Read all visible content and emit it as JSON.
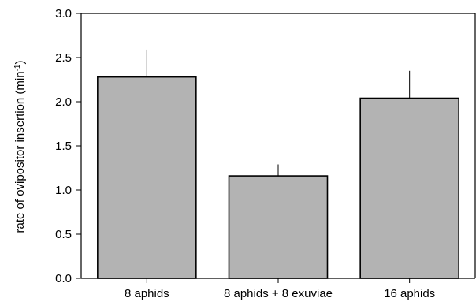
{
  "chart_data": {
    "type": "bar",
    "title": "",
    "xlabel": "",
    "ylabel": "rate of ovipositor insertion (min",
    "ylabel_superscript": "-1",
    "ylabel_suffix": ")",
    "categories": [
      "8 aphids",
      "8 aphids + 8 exuviae",
      "16 aphids"
    ],
    "values": [
      2.28,
      1.16,
      2.04
    ],
    "error_upper": [
      0.31,
      0.13,
      0.31
    ],
    "ylim": [
      0.0,
      3.0
    ],
    "yticks": [
      0.0,
      0.5,
      1.0,
      1.5,
      2.0,
      2.5,
      3.0
    ],
    "ytick_labels": [
      "0.0",
      "0.5",
      "1.0",
      "1.5",
      "2.0",
      "2.5",
      "3.0"
    ],
    "grid": false,
    "legend": "none",
    "colors": {
      "bar_fill": "#b3b3b3",
      "bar_stroke": "#000000",
      "axis": "#000000"
    }
  }
}
